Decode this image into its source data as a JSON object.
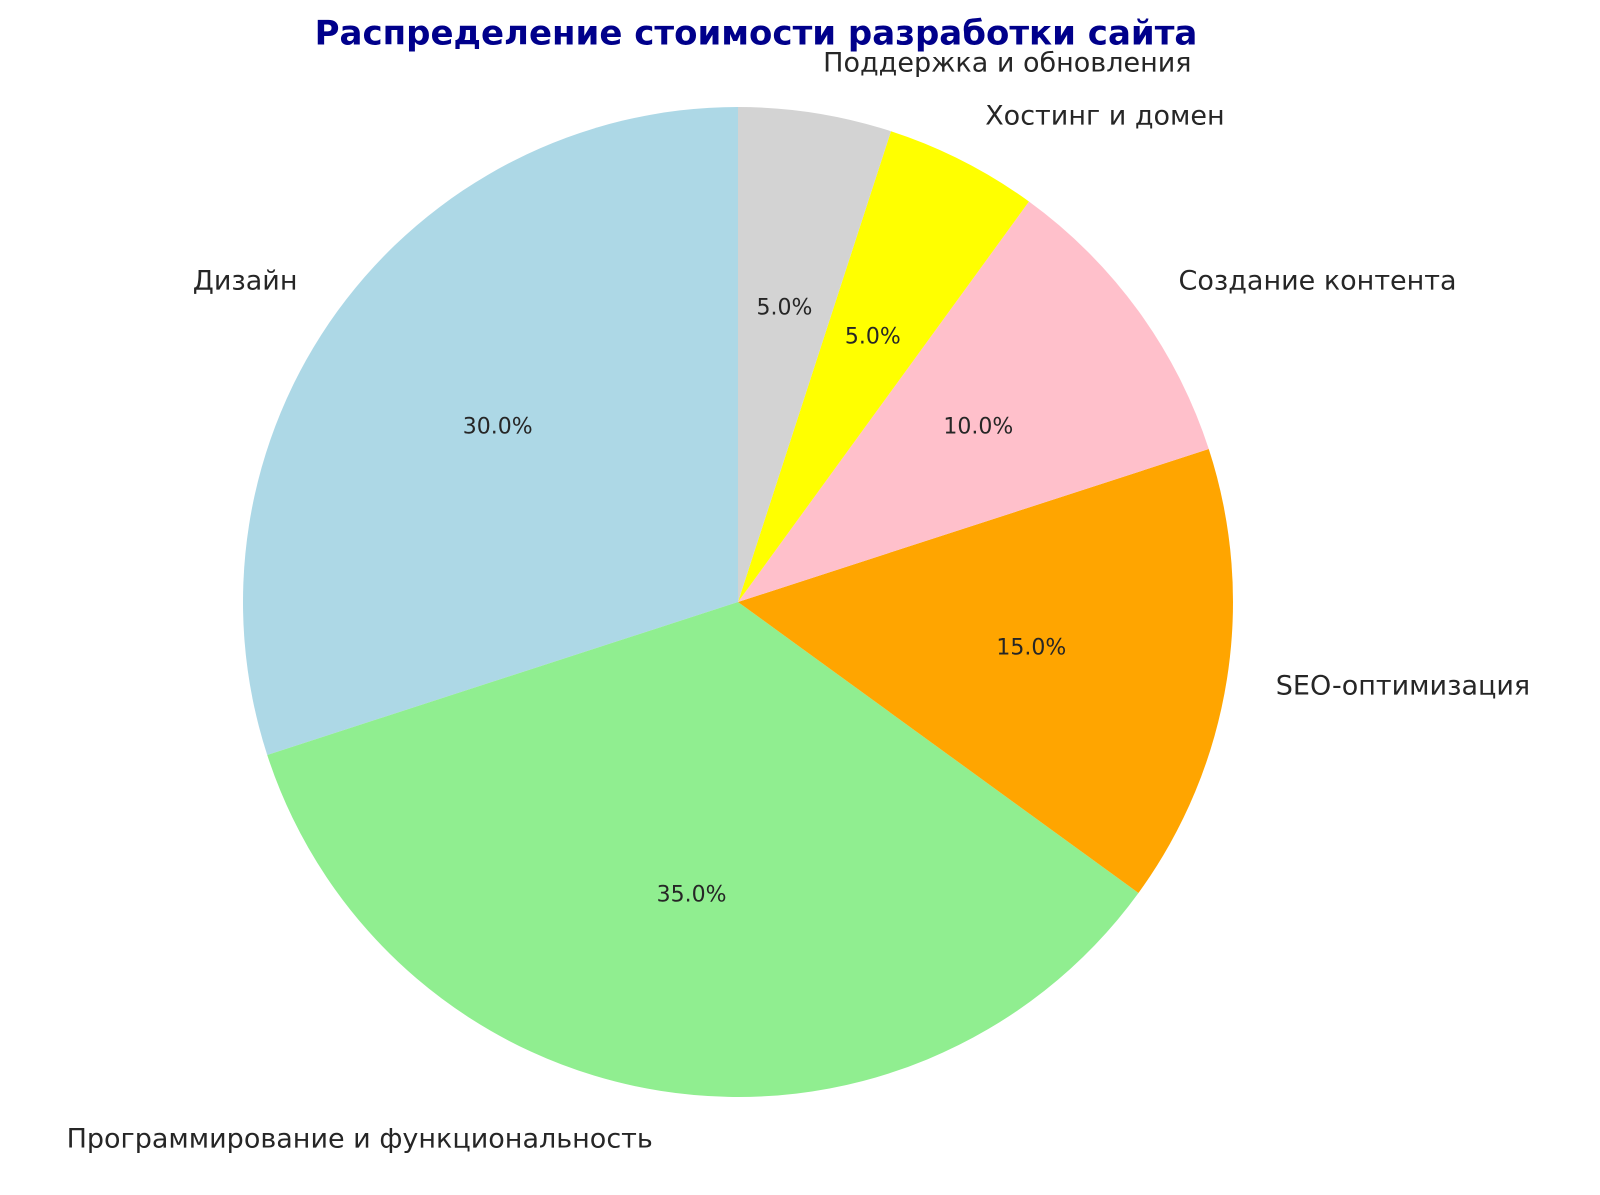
{
  "chart_data": {
    "type": "pie",
    "title": "Распределение стоимости разработки сайта",
    "categories": [
      "Дизайн",
      "Программирование и функциональность",
      "SEO-оптимизация",
      "Создание контента",
      "Хостинг и домен",
      "Поддержка и обновления"
    ],
    "values": [
      30,
      35,
      15,
      10,
      5,
      5
    ],
    "value_labels": [
      "30.0%",
      "35.0%",
      "15.0%",
      "10.0%",
      "5.0%",
      "5.0%"
    ],
    "colors": [
      "#add8e6",
      "#90ee90",
      "#ffa500",
      "#ffc0cb",
      "#ffff00",
      "#d3d3d3"
    ]
  }
}
